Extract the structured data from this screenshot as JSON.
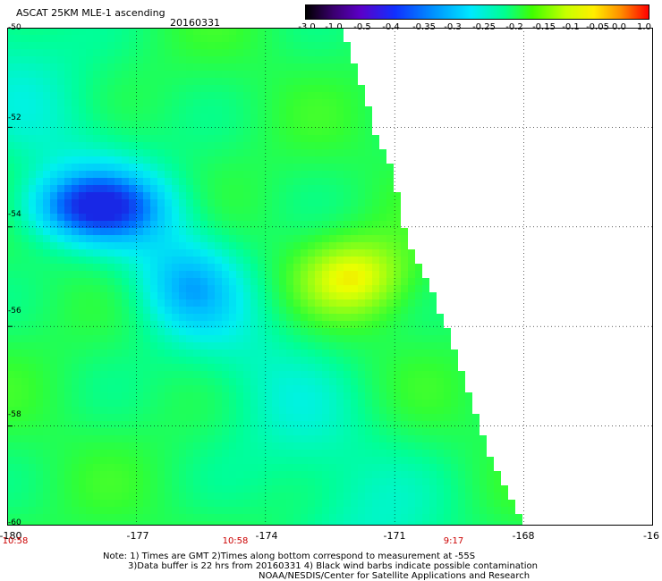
{
  "header": {
    "title": "ASCAT 25KM MLE-1 ascending",
    "date": "20160331"
  },
  "colorbar": {
    "labels": [
      "-3.0",
      "-1.0",
      "-0.5",
      "-0.4",
      "-0.35",
      "-0.3",
      "-0.25",
      "-0.2",
      "-0.15",
      "-0.1",
      "-0.05",
      "0.0",
      "1.0"
    ]
  },
  "map": {
    "lat_labels": [
      "-50",
      "-52",
      "-54",
      "-56",
      "-58",
      "-60"
    ],
    "lon_labels": [
      "-180",
      "-177",
      "-174",
      "-171",
      "-168",
      "-16"
    ],
    "time_labels": [
      "10:58",
      "10:58",
      "9:17"
    ],
    "swath_edge": [
      {
        "lat": -50.0,
        "lon": -172.2
      },
      {
        "lat": -51.0,
        "lon": -171.8
      },
      {
        "lat": -52.0,
        "lon": -171.5
      },
      {
        "lat": -53.0,
        "lon": -171.0
      },
      {
        "lat": -54.0,
        "lon": -170.8
      },
      {
        "lat": -55.0,
        "lon": -170.3
      },
      {
        "lat": -56.0,
        "lon": -169.8
      },
      {
        "lat": -57.0,
        "lon": -169.4
      },
      {
        "lat": -58.0,
        "lon": -169.0
      },
      {
        "lat": -59.0,
        "lon": -168.6
      },
      {
        "lat": -60.0,
        "lon": -168.0
      }
    ],
    "features": [
      {
        "kind": "low",
        "lat": -53.6,
        "lon": -178.0,
        "value": "-0.4"
      },
      {
        "kind": "high",
        "lat": -55.0,
        "lon": -171.8,
        "value": "-0.1"
      }
    ]
  },
  "notes": {
    "line1": "Note: 1) Times are GMT 2)Times along bottom correspond to measurement at -55S",
    "line2": "3)Data buffer is 22 hrs from 20160331 4) Black wind barbs indicate possible contamination",
    "line3": "NOAA/NESDIS/Center for Satellite Applications and Research"
  }
}
